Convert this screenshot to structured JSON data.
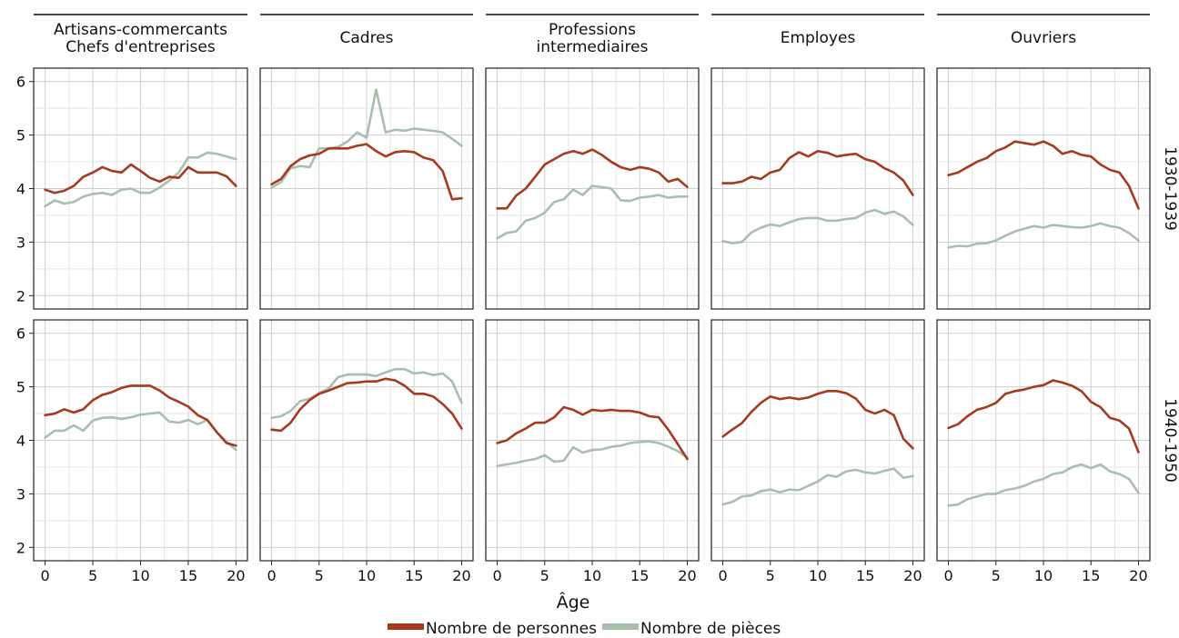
{
  "chart_data": {
    "type": "line",
    "xlabel": "Âge",
    "x": [
      0,
      1,
      2,
      3,
      4,
      5,
      6,
      7,
      8,
      9,
      10,
      11,
      12,
      13,
      14,
      15,
      16,
      17,
      18,
      19,
      20
    ],
    "xlim": [
      -1.2,
      21.2
    ],
    "ylim": [
      1.75,
      6.25
    ],
    "xticks": [
      0,
      5,
      10,
      15,
      20
    ],
    "yticks": [
      2,
      3,
      4,
      5,
      6
    ],
    "grid": true,
    "legend_position": "bottom-center",
    "columns": [
      {
        "label_lines": [
          "Artisans-commercants",
          "Chefs d'entreprises"
        ]
      },
      {
        "label_lines": [
          "Cadres"
        ]
      },
      {
        "label_lines": [
          "Professions",
          "intermediaires"
        ]
      },
      {
        "label_lines": [
          "Employes"
        ]
      },
      {
        "label_lines": [
          "Ouvriers"
        ]
      }
    ],
    "rows": [
      {
        "label": "1930-1939"
      },
      {
        "label": "1940-1950"
      }
    ],
    "series_meta": [
      {
        "name": "Nombre de personnes",
        "color": "#a63a1f"
      },
      {
        "name": "Nombre de pièces",
        "color": "#a9bfae"
      }
    ],
    "panels": [
      [
        {
          "series": [
            {
              "values": [
                3.98,
                3.92,
                3.96,
                4.05,
                4.22,
                4.3,
                4.4,
                4.33,
                4.3,
                4.45,
                4.33,
                4.2,
                4.13,
                4.22,
                4.2,
                4.4,
                4.3,
                4.3,
                4.3,
                4.23,
                4.05
              ]
            },
            {
              "values": [
                3.67,
                3.78,
                3.72,
                3.75,
                3.85,
                3.9,
                3.92,
                3.88,
                3.98,
                4.0,
                3.92,
                3.92,
                4.02,
                4.15,
                4.3,
                4.58,
                4.58,
                4.67,
                4.65,
                4.6,
                4.55
              ]
            }
          ]
        },
        {
          "series": [
            {
              "values": [
                4.08,
                4.18,
                4.42,
                4.55,
                4.62,
                4.65,
                4.75,
                4.75,
                4.75,
                4.8,
                4.83,
                4.7,
                4.6,
                4.68,
                4.7,
                4.68,
                4.58,
                4.53,
                4.33,
                3.8,
                3.82
              ]
            },
            {
              "values": [
                4.02,
                4.12,
                4.38,
                4.42,
                4.4,
                4.75,
                4.75,
                4.78,
                4.88,
                5.05,
                4.95,
                5.85,
                5.05,
                5.1,
                5.08,
                5.12,
                5.1,
                5.08,
                5.05,
                4.93,
                4.8
              ]
            }
          ]
        },
        {
          "series": [
            {
              "values": [
                3.63,
                3.63,
                3.87,
                4.0,
                4.22,
                4.45,
                4.55,
                4.65,
                4.7,
                4.65,
                4.73,
                4.63,
                4.5,
                4.4,
                4.35,
                4.4,
                4.37,
                4.3,
                4.13,
                4.18,
                4.03
              ]
            },
            {
              "values": [
                3.07,
                3.17,
                3.2,
                3.4,
                3.45,
                3.55,
                3.75,
                3.8,
                3.98,
                3.88,
                4.05,
                4.03,
                4.0,
                3.78,
                3.77,
                3.83,
                3.85,
                3.88,
                3.83,
                3.85,
                3.85
              ]
            }
          ]
        },
        {
          "series": [
            {
              "values": [
                4.1,
                4.1,
                4.13,
                4.22,
                4.18,
                4.3,
                4.35,
                4.57,
                4.68,
                4.6,
                4.7,
                4.67,
                4.6,
                4.63,
                4.65,
                4.55,
                4.5,
                4.38,
                4.3,
                4.15,
                3.88
              ]
            },
            {
              "values": [
                3.02,
                2.98,
                3.0,
                3.18,
                3.27,
                3.33,
                3.3,
                3.37,
                3.43,
                3.45,
                3.45,
                3.4,
                3.4,
                3.43,
                3.45,
                3.55,
                3.6,
                3.53,
                3.57,
                3.48,
                3.32
              ]
            }
          ]
        },
        {
          "series": [
            {
              "values": [
                4.25,
                4.3,
                4.4,
                4.5,
                4.57,
                4.7,
                4.77,
                4.88,
                4.85,
                4.82,
                4.88,
                4.8,
                4.65,
                4.7,
                4.63,
                4.6,
                4.45,
                4.35,
                4.3,
                4.05,
                3.63
              ]
            },
            {
              "values": [
                2.9,
                2.93,
                2.92,
                2.97,
                2.98,
                3.03,
                3.12,
                3.2,
                3.25,
                3.3,
                3.27,
                3.32,
                3.3,
                3.28,
                3.27,
                3.3,
                3.35,
                3.3,
                3.27,
                3.17,
                3.03
              ]
            }
          ]
        }
      ],
      [
        {
          "series": [
            {
              "values": [
                4.47,
                4.5,
                4.58,
                4.52,
                4.58,
                4.75,
                4.85,
                4.9,
                4.98,
                5.02,
                5.02,
                5.02,
                4.93,
                4.8,
                4.72,
                4.63,
                4.47,
                4.38,
                4.15,
                3.95,
                3.9
              ]
            },
            {
              "values": [
                4.05,
                4.18,
                4.18,
                4.28,
                4.18,
                4.37,
                4.42,
                4.43,
                4.4,
                4.43,
                4.48,
                4.5,
                4.52,
                4.35,
                4.33,
                4.38,
                4.3,
                4.38,
                4.15,
                3.98,
                3.82
              ]
            }
          ]
        },
        {
          "series": [
            {
              "values": [
                4.2,
                4.18,
                4.33,
                4.58,
                4.75,
                4.87,
                4.93,
                5.0,
                5.07,
                5.08,
                5.1,
                5.1,
                5.15,
                5.12,
                5.02,
                4.87,
                4.87,
                4.82,
                4.68,
                4.5,
                4.22
              ]
            },
            {
              "values": [
                4.42,
                4.45,
                4.55,
                4.73,
                4.78,
                4.88,
                4.97,
                5.18,
                5.23,
                5.23,
                5.23,
                5.2,
                5.27,
                5.33,
                5.33,
                5.25,
                5.27,
                5.22,
                5.25,
                5.1,
                4.7
              ]
            }
          ]
        },
        {
          "series": [
            {
              "values": [
                3.95,
                4.0,
                4.13,
                4.22,
                4.33,
                4.33,
                4.43,
                4.62,
                4.57,
                4.48,
                4.57,
                4.55,
                4.57,
                4.55,
                4.55,
                4.52,
                4.45,
                4.43,
                4.2,
                3.93,
                3.65
              ]
            },
            {
              "values": [
                3.52,
                3.55,
                3.58,
                3.62,
                3.65,
                3.72,
                3.6,
                3.62,
                3.87,
                3.77,
                3.82,
                3.83,
                3.88,
                3.9,
                3.95,
                3.97,
                3.98,
                3.95,
                3.88,
                3.8,
                3.68
              ]
            }
          ]
        },
        {
          "series": [
            {
              "values": [
                4.07,
                4.2,
                4.32,
                4.53,
                4.7,
                4.82,
                4.77,
                4.8,
                4.77,
                4.8,
                4.87,
                4.92,
                4.92,
                4.88,
                4.78,
                4.57,
                4.5,
                4.57,
                4.47,
                4.03,
                3.85
              ]
            },
            {
              "values": [
                2.8,
                2.85,
                2.95,
                2.97,
                3.05,
                3.08,
                3.03,
                3.08,
                3.07,
                3.15,
                3.23,
                3.35,
                3.32,
                3.42,
                3.45,
                3.4,
                3.38,
                3.43,
                3.47,
                3.3,
                3.33
              ]
            }
          ]
        },
        {
          "series": [
            {
              "values": [
                4.23,
                4.3,
                4.45,
                4.57,
                4.62,
                4.7,
                4.87,
                4.92,
                4.95,
                5.0,
                5.03,
                5.12,
                5.08,
                5.02,
                4.92,
                4.72,
                4.62,
                4.42,
                4.37,
                4.22,
                3.78
              ]
            },
            {
              "values": [
                2.78,
                2.8,
                2.9,
                2.95,
                3.0,
                3.0,
                3.07,
                3.1,
                3.15,
                3.23,
                3.28,
                3.37,
                3.4,
                3.5,
                3.55,
                3.48,
                3.55,
                3.42,
                3.37,
                3.28,
                3.02
              ]
            }
          ]
        }
      ]
    ]
  }
}
